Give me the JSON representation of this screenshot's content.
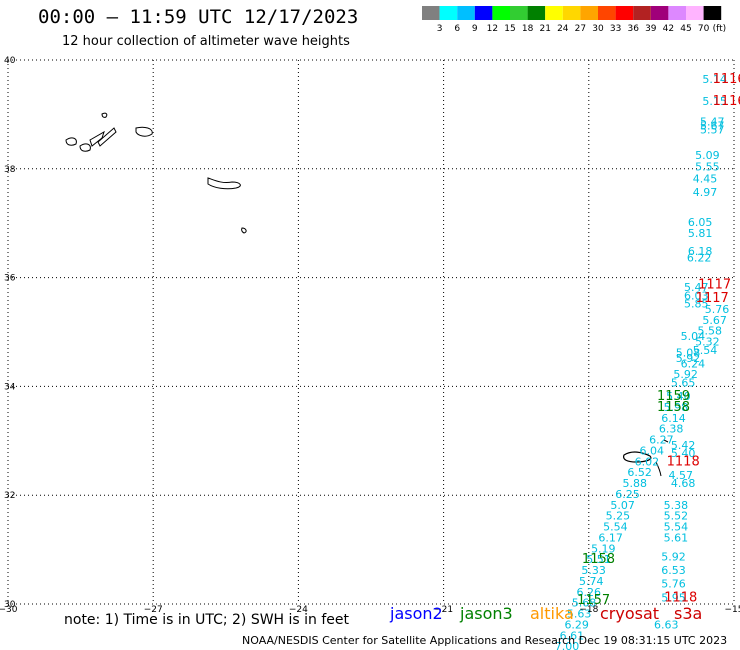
{
  "header": {
    "title": "00:00 – 11:59 UTC 12/17/2023",
    "subtitle": "12 hour collection of altimeter wave heights"
  },
  "colorbar": {
    "labels": [
      "3",
      "6",
      "9",
      "12",
      "15",
      "18",
      "21",
      "24",
      "27",
      "30",
      "33",
      "36",
      "39",
      "42",
      "45",
      "70"
    ],
    "unit": "(ft)",
    "colors": [
      "#808080",
      "#00ffff",
      "#00bfff",
      "#0000ff",
      "#00ff00",
      "#32cd32",
      "#008000",
      "#ffff00",
      "#ffd700",
      "#ffa500",
      "#ff4500",
      "#ff0000",
      "#b22222",
      "#a0007a",
      "#dd88ff",
      "#ffb4ff",
      "#000000"
    ]
  },
  "footnote": {
    "note": "note:  1) Time is in UTC;  2) SWH is in feet",
    "credit": "NOAA/NESDIS Center for Satellite Applications and Research    Dec 19 08:31:15 UTC 2023"
  },
  "legend": [
    {
      "name": "jason2",
      "color": "#0000ff"
    },
    {
      "name": "jason3",
      "color": "#008000"
    },
    {
      "name": "altika",
      "color": "#ff9900"
    },
    {
      "name": "cryosat",
      "color": "#cc0000"
    },
    {
      "name": "s3a",
      "color": "#cc0000"
    }
  ],
  "chart_data": {
    "type": "scatter",
    "x_ticks": [
      "−30",
      "−27",
      "−24",
      "−21",
      "−18",
      "−15"
    ],
    "y_ticks": [
      "30",
      "32",
      "34",
      "36",
      "38",
      "40"
    ],
    "xlim": [
      -30,
      -15
    ],
    "ylim": [
      30,
      40
    ],
    "grid": true,
    "series": [
      {
        "name": "",
        "color": "#00bfdf",
        "points": [
          {
            "lon": -15.4,
            "lat": 39.58,
            "label": "5.14"
          },
          {
            "lon": -15.4,
            "lat": 39.17,
            "label": "5.15"
          },
          {
            "lon": -15.45,
            "lat": 38.8,
            "label": "5.47"
          },
          {
            "lon": -15.45,
            "lat": 38.72,
            "label": "5.67"
          },
          {
            "lon": -15.45,
            "lat": 38.65,
            "label": "5.57"
          },
          {
            "lon": -15.55,
            "lat": 38.18,
            "label": "5.09"
          },
          {
            "lon": -15.55,
            "lat": 37.97,
            "label": "5.55"
          },
          {
            "lon": -15.6,
            "lat": 37.75,
            "label": "4.45"
          },
          {
            "lon": -15.6,
            "lat": 37.5,
            "label": "4.97"
          },
          {
            "lon": -15.7,
            "lat": 36.95,
            "label": "6.05"
          },
          {
            "lon": -15.7,
            "lat": 36.75,
            "label": "5.81"
          },
          {
            "lon": -15.7,
            "lat": 36.42,
            "label": "6.18"
          },
          {
            "lon": -15.72,
            "lat": 36.3,
            "label": "6.22"
          },
          {
            "lon": -15.78,
            "lat": 35.75,
            "label": "5.47"
          },
          {
            "lon": -15.78,
            "lat": 35.6,
            "label": "6.03"
          },
          {
            "lon": -15.78,
            "lat": 35.45,
            "label": "5.85"
          },
          {
            "lon": -15.35,
            "lat": 35.35,
            "label": "5.76"
          },
          {
            "lon": -15.4,
            "lat": 35.15,
            "label": "5.67"
          },
          {
            "lon": -15.5,
            "lat": 34.95,
            "label": "5.58"
          },
          {
            "lon": -15.85,
            "lat": 34.85,
            "label": "5.04"
          },
          {
            "lon": -15.55,
            "lat": 34.75,
            "label": "5.32"
          },
          {
            "lon": -15.6,
            "lat": 34.6,
            "label": "5.54"
          },
          {
            "lon": -15.95,
            "lat": 34.55,
            "label": "5.08"
          },
          {
            "lon": -15.95,
            "lat": 34.45,
            "label": "5.92"
          },
          {
            "lon": -15.85,
            "lat": 34.35,
            "label": "6.24"
          },
          {
            "lon": -16.0,
            "lat": 34.15,
            "label": "5.92"
          },
          {
            "lon": -16.05,
            "lat": 34.0,
            "label": "5.65"
          },
          {
            "lon": -16.15,
            "lat": 33.75,
            "label": "5.40"
          },
          {
            "lon": -16.2,
            "lat": 33.55,
            "label": "5.98"
          },
          {
            "lon": -16.25,
            "lat": 33.35,
            "label": "6.14"
          },
          {
            "lon": -16.3,
            "lat": 33.15,
            "label": "6.38"
          },
          {
            "lon": -16.5,
            "lat": 32.95,
            "label": "6.27"
          },
          {
            "lon": -16.7,
            "lat": 32.75,
            "label": "6.04"
          },
          {
            "lon": -16.8,
            "lat": 32.55,
            "label": "6.02"
          },
          {
            "lon": -16.95,
            "lat": 32.35,
            "label": "6.52"
          },
          {
            "lon": -17.05,
            "lat": 32.15,
            "label": "5.88"
          },
          {
            "lon": -17.2,
            "lat": 31.95,
            "label": "6.25"
          },
          {
            "lon": -17.3,
            "lat": 31.75,
            "label": "5.07"
          },
          {
            "lon": -17.4,
            "lat": 31.55,
            "label": "5.25"
          },
          {
            "lon": -17.45,
            "lat": 31.35,
            "label": "5.54"
          },
          {
            "lon": -17.55,
            "lat": 31.15,
            "label": "6.17"
          },
          {
            "lon": -17.7,
            "lat": 30.95,
            "label": "5.19"
          },
          {
            "lon": -17.8,
            "lat": 30.75,
            "label": "5.51"
          },
          {
            "lon": -17.9,
            "lat": 30.55,
            "label": "5.33"
          },
          {
            "lon": -17.95,
            "lat": 30.35,
            "label": "5.74"
          },
          {
            "lon": -18.0,
            "lat": 30.15,
            "label": "6.26"
          },
          {
            "lon": -18.1,
            "lat": 29.95,
            "label": "5.68"
          },
          {
            "lon": -18.2,
            "lat": 29.75,
            "label": "5.63"
          },
          {
            "lon": -18.25,
            "lat": 29.55,
            "label": "6.29"
          },
          {
            "lon": -18.35,
            "lat": 29.35,
            "label": "6.61"
          },
          {
            "lon": -18.45,
            "lat": 29.15,
            "label": "7.00"
          }
        ]
      },
      {
        "name": "",
        "color": "#00bfdf",
        "points": [
          {
            "lon": -16.05,
            "lat": 32.85,
            "label": "5.42"
          },
          {
            "lon": -16.05,
            "lat": 32.7,
            "label": "5.40"
          },
          {
            "lon": -16.1,
            "lat": 32.3,
            "label": "4.57"
          },
          {
            "lon": -16.05,
            "lat": 32.15,
            "label": "4.68"
          },
          {
            "lon": -16.2,
            "lat": 31.75,
            "label": "5.38"
          },
          {
            "lon": -16.2,
            "lat": 31.55,
            "label": "5.52"
          },
          {
            "lon": -16.2,
            "lat": 31.35,
            "label": "5.54"
          },
          {
            "lon": -16.2,
            "lat": 31.15,
            "label": "5.61"
          },
          {
            "lon": -16.25,
            "lat": 30.8,
            "label": "5.92"
          },
          {
            "lon": -16.25,
            "lat": 30.55,
            "label": "6.53"
          },
          {
            "lon": -16.25,
            "lat": 30.3,
            "label": "5.76"
          },
          {
            "lon": -16.25,
            "lat": 30.05,
            "label": "5.95"
          },
          {
            "lon": -16.4,
            "lat": 29.55,
            "label": "6.63"
          }
        ]
      },
      {
        "name": "",
        "color": "#dd0000",
        "points": [
          {
            "lon": -15.1,
            "lat": 39.58,
            "label": "1116"
          },
          {
            "lon": -15.1,
            "lat": 39.17,
            "label": "1116"
          },
          {
            "lon": -15.4,
            "lat": 35.8,
            "label": "1117"
          },
          {
            "lon": -15.45,
            "lat": 35.55,
            "label": "1117"
          },
          {
            "lon": -16.05,
            "lat": 32.55,
            "label": "1118"
          },
          {
            "lon": -16.1,
            "lat": 30.05,
            "label": "1118"
          }
        ]
      },
      {
        "name": "",
        "color": "#008000",
        "points": [
          {
            "lon": -16.25,
            "lat": 33.75,
            "label": "1159"
          },
          {
            "lon": -16.25,
            "lat": 33.55,
            "label": "1158"
          },
          {
            "lon": -17.8,
            "lat": 30.75,
            "label": "1158"
          },
          {
            "lon": -17.9,
            "lat": 30.0,
            "label": "1157"
          }
        ]
      }
    ]
  }
}
